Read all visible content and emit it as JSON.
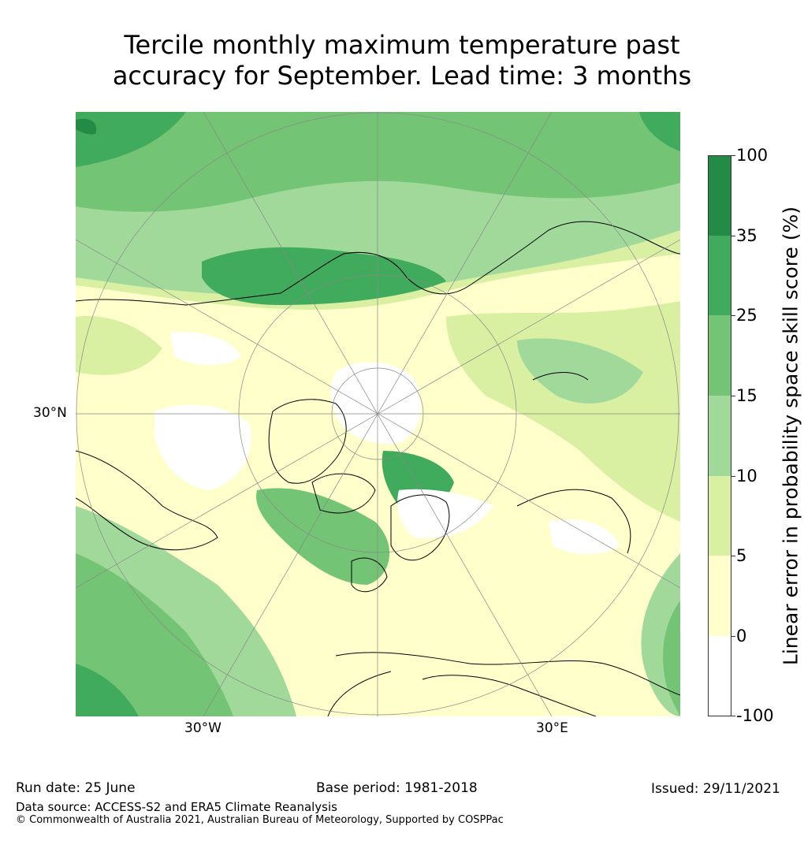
{
  "title": {
    "line1": "Tercile monthly maximum temperature past",
    "line2": "accuracy for September. Lead time: 3 months"
  },
  "map": {
    "projection": "north-polar-stereographic",
    "lat_label": "30°N",
    "lon_labels": [
      "30°W",
      "30°E"
    ],
    "land_outline_color": "#000000",
    "graticule_color": "#888888"
  },
  "colorbar": {
    "label": "Linear error in probability space skill score (%)",
    "ticks": [
      "100",
      "35",
      "25",
      "15",
      "10",
      "5",
      "0",
      "-100"
    ],
    "bins": [
      {
        "from": "35",
        "to": "100",
        "color": "#238b45"
      },
      {
        "from": "25",
        "to": "35",
        "color": "#41ab5d"
      },
      {
        "from": "15",
        "to": "25",
        "color": "#74c476"
      },
      {
        "from": "10",
        "to": "15",
        "color": "#a1d99b"
      },
      {
        "from": "5",
        "to": "10",
        "color": "#d9f0a3"
      },
      {
        "from": "0",
        "to": "5",
        "color": "#ffffcc"
      },
      {
        "from": "-100",
        "to": "0",
        "color": "#ffffff"
      }
    ]
  },
  "footer": {
    "run_date": "Run date: 25 June",
    "base_period": "Base period: 1981-2018",
    "issued": "Issued: 29/11/2021",
    "data_source": "Data source: ACCESS-S2 and ERA5 Climate Reanalysis",
    "copyright": "© Commonwealth of Australia 2021, Australian Bureau of Meteorology, Supported by COSPPac"
  }
}
